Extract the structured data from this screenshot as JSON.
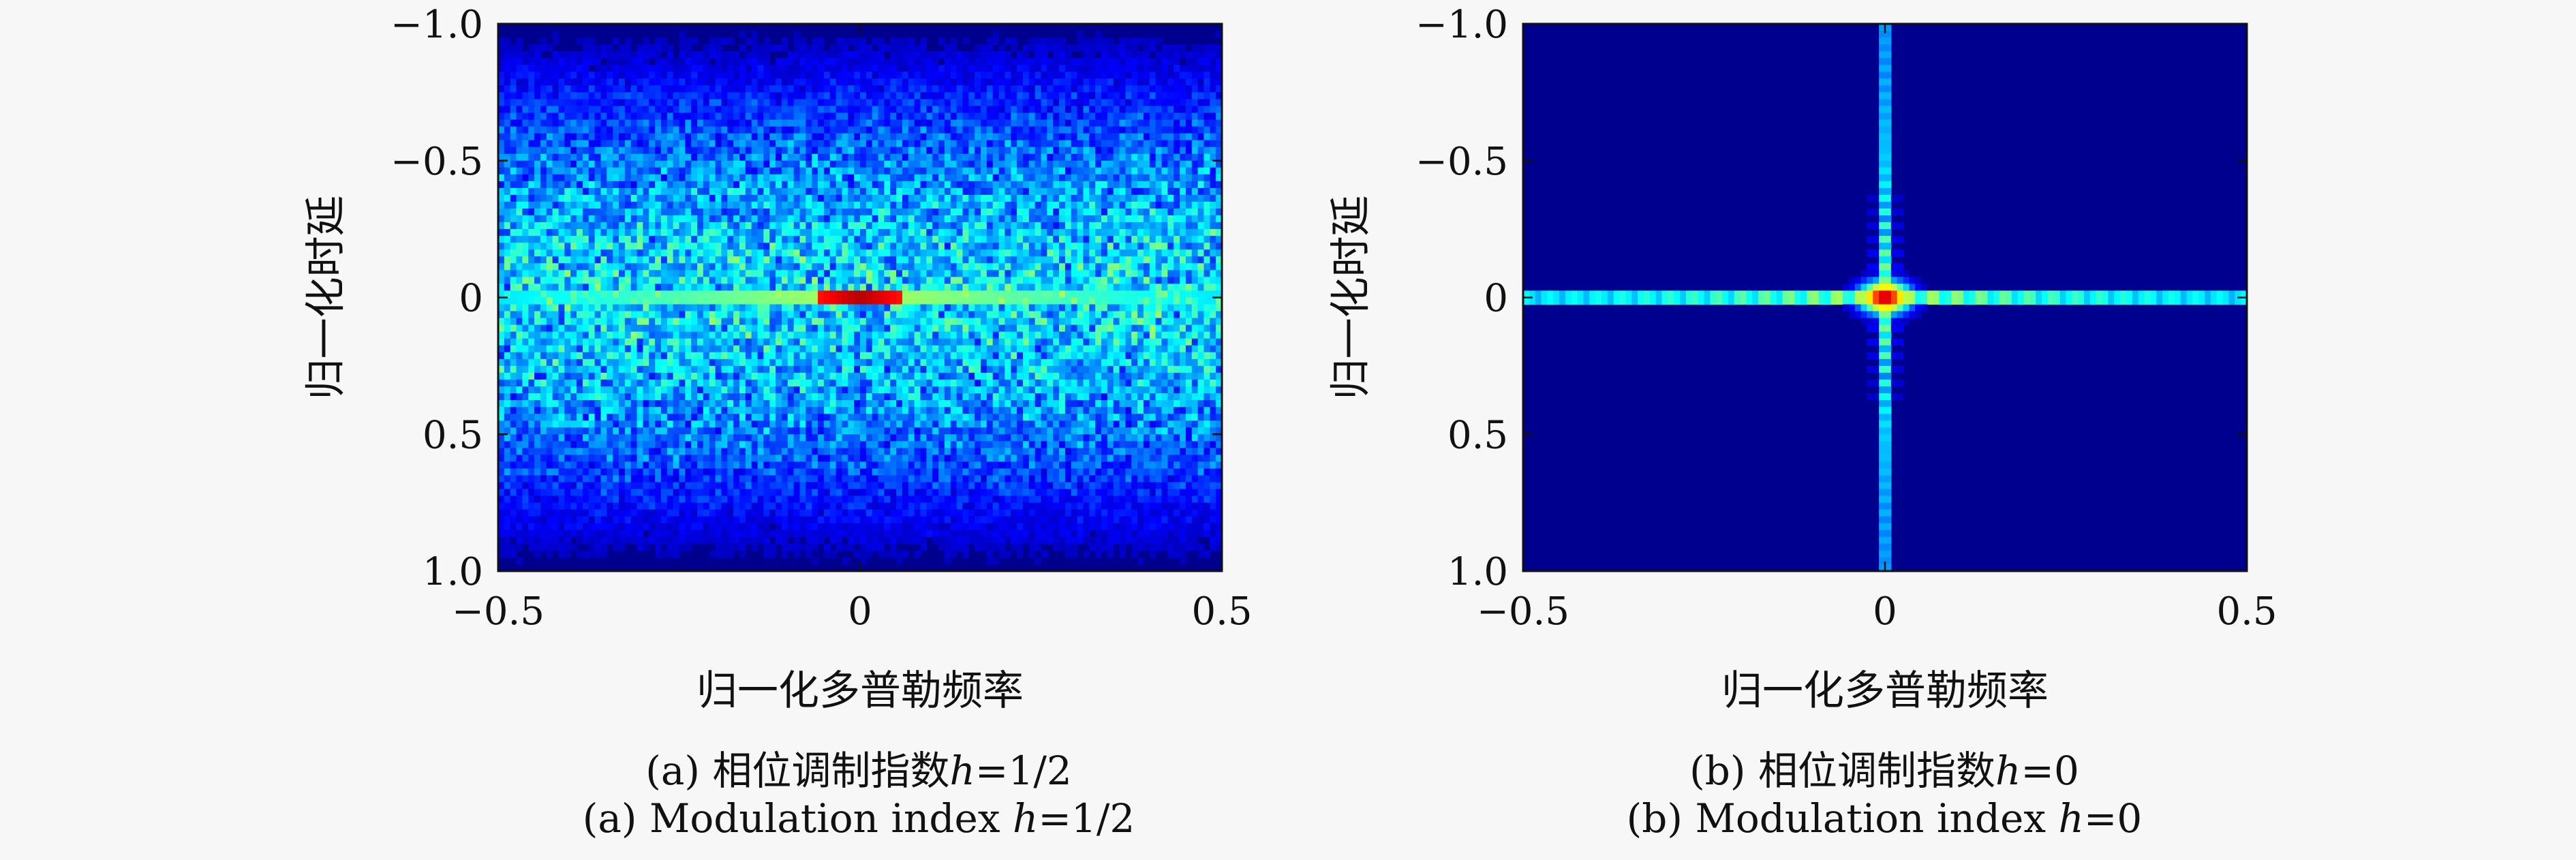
{
  "chart_data": [
    {
      "type": "heatmap",
      "panel": "a",
      "xlabel": "归一化多普勒频率",
      "ylabel": "归一化时延",
      "xlim": [
        -0.5,
        0.5
      ],
      "ylim": [
        -1.0,
        1.0
      ],
      "x_ticks": [
        -0.5,
        0,
        0.5
      ],
      "x_tick_labels": [
        "−0.5",
        "0",
        "0.5"
      ],
      "y_ticks": [
        -1.0,
        -0.5,
        0,
        0.5,
        1.0
      ],
      "y_tick_labels": [
        "−1.0",
        "−0.5",
        "0",
        "0.5",
        "1.0"
      ],
      "y_axis_inverted": true,
      "colormap": [
        "#00008f",
        "#0000ff",
        "#0080ff",
        "#00ffff",
        "#80ff80",
        "#ffff00",
        "#ff8000",
        "#ff0000",
        "#800000"
      ],
      "description_values": {
        "peak_location": [
          0,
          0
        ],
        "peak_level": 1.0,
        "sidelobe_floor_level": 0.35
      },
      "caption_cn": {
        "prefix": "(a) 相位调制指数",
        "var": "h",
        "value": "=1/2"
      },
      "caption_en": {
        "prefix": "(a) Modulation index ",
        "var": "h",
        "value": "=1/2"
      }
    },
    {
      "type": "heatmap",
      "panel": "b",
      "xlabel": "归一化多普勒频率",
      "ylabel": "归一化时延",
      "xlim": [
        -0.5,
        0.5
      ],
      "ylim": [
        -1.0,
        1.0
      ],
      "x_ticks": [
        -0.5,
        0,
        0.5
      ],
      "x_tick_labels": [
        "−0.5",
        "0",
        "0.5"
      ],
      "y_ticks": [
        -1.0,
        -0.5,
        0,
        0.5,
        1.0
      ],
      "y_tick_labels": [
        "−1.0",
        "−0.5",
        "0",
        "0.5",
        "1.0"
      ],
      "y_axis_inverted": true,
      "colormap": [
        "#00008f",
        "#0000ff",
        "#0080ff",
        "#00ffff",
        "#80ff80",
        "#ffff00",
        "#ff8000",
        "#ff0000",
        "#800000"
      ],
      "description_values": {
        "peak_location": [
          0,
          0
        ],
        "peak_level": 1.0,
        "background_level": 0.0
      },
      "caption_cn": {
        "prefix": "(b) 相位调制指数",
        "var": "h",
        "value": "=0"
      },
      "caption_en": {
        "prefix": "(b) Modulation index ",
        "var": "h",
        "value": "=0"
      }
    }
  ]
}
